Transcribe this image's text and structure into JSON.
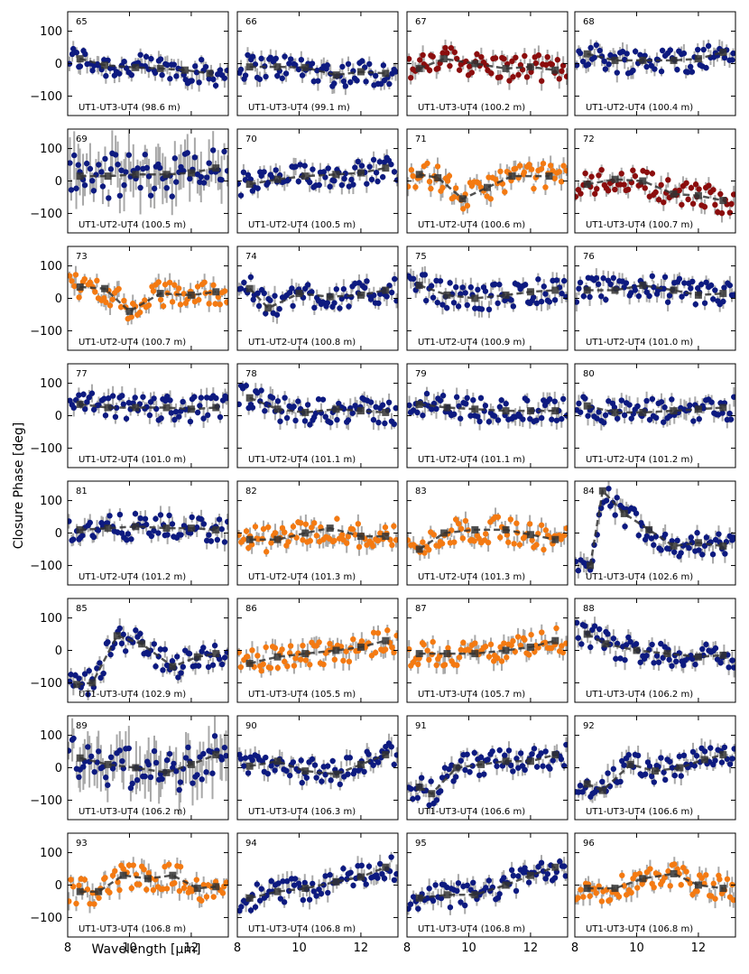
{
  "figure": {
    "ylabel": "Closure Phase [deg]",
    "xlabel": "Wavelength [μm]"
  },
  "colors": {
    "navy": "#0d1a80",
    "orange": "#f47a12",
    "darkred": "#8b0d0d",
    "model": "#333333",
    "errorbar": "#a8a8a8"
  },
  "chart_data": {
    "type": "scatter",
    "layout": "grid 8 rows x 4 columns of small panels, shared x and y axes",
    "xlim": [
      8,
      13.2
    ],
    "ylim": [
      -160,
      160
    ],
    "xticks": [
      8,
      10,
      12
    ],
    "yticks": [
      -100,
      0,
      100
    ],
    "series_description": "each panel: measured closure phase points with grey error bars, plus dark-grey square markers joined by a dashed line (model)",
    "panels": [
      {
        "id": "65",
        "label": "UT1-UT3-UT4 (98.6 m)",
        "color": "navy",
        "model": [
          [
            8.4,
            15
          ],
          [
            9.2,
            -5
          ],
          [
            10.2,
            -12
          ],
          [
            11.0,
            -15
          ],
          [
            11.8,
            -20
          ],
          [
            12.6,
            -30
          ]
        ]
      },
      {
        "id": "66",
        "label": "UT1-UT3-UT4 (99.1 m)",
        "color": "navy",
        "model": [
          [
            8.4,
            -10
          ],
          [
            9.3,
            -10
          ],
          [
            10.2,
            -12
          ],
          [
            11.2,
            -35
          ],
          [
            12.0,
            -25
          ],
          [
            12.8,
            -30
          ]
        ]
      },
      {
        "id": "67",
        "label": "UT1-UT3-UT4 (100.2 m)",
        "color": "darkred",
        "model": [
          [
            8.4,
            -15
          ],
          [
            9.2,
            15
          ],
          [
            10.2,
            0
          ],
          [
            11.2,
            -15
          ],
          [
            12.0,
            -10
          ],
          [
            12.8,
            -20
          ]
        ]
      },
      {
        "id": "68",
        "label": "UT1-UT2-UT4 (100.4 m)",
        "color": "navy",
        "model": [
          [
            8.4,
            30
          ],
          [
            9.3,
            10
          ],
          [
            10.2,
            10
          ],
          [
            11.2,
            10
          ],
          [
            12.0,
            15
          ],
          [
            12.8,
            35
          ]
        ]
      },
      {
        "id": "69",
        "label": "UT1-UT2-UT4 (100.5 m)",
        "color": "navy",
        "model": [
          [
            8.4,
            15
          ],
          [
            9.3,
            15
          ],
          [
            10.2,
            20
          ],
          [
            11.2,
            20
          ],
          [
            12.0,
            25
          ],
          [
            12.8,
            40
          ]
        ]
      },
      {
        "id": "70",
        "label": "UT1-UT2-UT4 (100.5 m)",
        "color": "navy",
        "model": [
          [
            8.4,
            -10
          ],
          [
            9.3,
            5
          ],
          [
            10.2,
            15
          ],
          [
            11.2,
            20
          ],
          [
            12.0,
            25
          ],
          [
            12.8,
            40
          ]
        ]
      },
      {
        "id": "71",
        "label": "UT1-UT2-UT4 (100.6 m)",
        "color": "orange",
        "model": [
          [
            8.4,
            20
          ],
          [
            9.0,
            10
          ],
          [
            9.8,
            -55
          ],
          [
            10.6,
            -20
          ],
          [
            11.4,
            15
          ],
          [
            12.6,
            15
          ]
        ]
      },
      {
        "id": "72",
        "label": "UT1-UT3-UT4 (100.7 m)",
        "color": "darkred",
        "model": [
          [
            8.4,
            -10
          ],
          [
            9.3,
            5
          ],
          [
            10.2,
            0
          ],
          [
            11.2,
            -40
          ],
          [
            12.0,
            -45
          ],
          [
            12.8,
            -60
          ]
        ]
      },
      {
        "id": "73",
        "label": "UT1-UT2-UT4 (100.7 m)",
        "color": "orange",
        "model": [
          [
            8.4,
            35
          ],
          [
            9.2,
            30
          ],
          [
            10.0,
            -40
          ],
          [
            11.0,
            15
          ],
          [
            12.0,
            10
          ],
          [
            12.8,
            20
          ]
        ]
      },
      {
        "id": "74",
        "label": "UT1-UT2-UT4 (100.8 m)",
        "color": "navy",
        "model": [
          [
            8.4,
            30
          ],
          [
            9.0,
            -30
          ],
          [
            10.0,
            15
          ],
          [
            11.0,
            5
          ],
          [
            12.0,
            10
          ],
          [
            12.8,
            25
          ]
        ]
      },
      {
        "id": "75",
        "label": "UT1-UT2-UT4 (100.9 m)",
        "color": "navy",
        "model": [
          [
            8.4,
            40
          ],
          [
            9.3,
            10
          ],
          [
            10.2,
            0
          ],
          [
            11.2,
            10
          ],
          [
            12.0,
            20
          ],
          [
            12.8,
            25
          ]
        ]
      },
      {
        "id": "76",
        "label": "UT1-UT2-UT4 (101.0 m)",
        "color": "navy",
        "model": [
          [
            8.4,
            25
          ],
          [
            9.3,
            25
          ],
          [
            10.2,
            40
          ],
          [
            11.2,
            25
          ],
          [
            12.0,
            10
          ],
          [
            12.8,
            15
          ]
        ]
      },
      {
        "id": "77",
        "label": "UT1-UT2-UT4 (101.0 m)",
        "color": "navy",
        "model": [
          [
            8.4,
            35
          ],
          [
            9.3,
            25
          ],
          [
            10.2,
            25
          ],
          [
            11.2,
            25
          ],
          [
            12.0,
            20
          ],
          [
            12.8,
            25
          ]
        ]
      },
      {
        "id": "78",
        "label": "UT1-UT2-UT4 (101.1 m)",
        "color": "navy",
        "model": [
          [
            8.4,
            55
          ],
          [
            9.3,
            20
          ],
          [
            10.2,
            10
          ],
          [
            11.2,
            20
          ],
          [
            12.0,
            15
          ],
          [
            12.8,
            10
          ]
        ]
      },
      {
        "id": "79",
        "label": "UT1-UT2-UT4 (101.1 m)",
        "color": "navy",
        "model": [
          [
            8.4,
            35
          ],
          [
            9.3,
            25
          ],
          [
            10.2,
            20
          ],
          [
            11.2,
            15
          ],
          [
            12.0,
            15
          ],
          [
            12.8,
            15
          ]
        ]
      },
      {
        "id": "80",
        "label": "UT1-UT2-UT4 (101.2 m)",
        "color": "navy",
        "model": [
          [
            8.4,
            30
          ],
          [
            9.3,
            10
          ],
          [
            10.2,
            10
          ],
          [
            11.2,
            15
          ],
          [
            12.0,
            20
          ],
          [
            12.8,
            25
          ]
        ]
      },
      {
        "id": "81",
        "label": "UT1-UT2-UT4 (101.2 m)",
        "color": "navy",
        "model": [
          [
            8.4,
            10
          ],
          [
            9.3,
            15
          ],
          [
            10.2,
            20
          ],
          [
            11.2,
            15
          ],
          [
            12.0,
            15
          ],
          [
            12.8,
            10
          ]
        ]
      },
      {
        "id": "82",
        "label": "UT1-UT2-UT4 (101.3 m)",
        "color": "orange",
        "model": [
          [
            8.4,
            -20
          ],
          [
            9.3,
            -20
          ],
          [
            10.2,
            0
          ],
          [
            11.0,
            15
          ],
          [
            12.0,
            -10
          ],
          [
            12.8,
            -10
          ]
        ]
      },
      {
        "id": "83",
        "label": "UT1-UT2-UT4 (101.3 m)",
        "color": "orange",
        "model": [
          [
            8.4,
            -50
          ],
          [
            9.2,
            0
          ],
          [
            10.2,
            10
          ],
          [
            11.2,
            10
          ],
          [
            12.0,
            -5
          ],
          [
            12.8,
            -20
          ]
        ]
      },
      {
        "id": "84",
        "label": "UT1-UT3-UT4 (102.6 m)",
        "color": "navy",
        "model": [
          [
            8.5,
            -100
          ],
          [
            8.9,
            130
          ],
          [
            9.6,
            60
          ],
          [
            10.4,
            10
          ],
          [
            11.2,
            -40
          ],
          [
            12.0,
            -30
          ],
          [
            12.8,
            -40
          ]
        ]
      },
      {
        "id": "85",
        "label": "UT1-UT3-UT4 (102.9 m)",
        "color": "navy",
        "model": [
          [
            8.3,
            -105
          ],
          [
            8.8,
            -100
          ],
          [
            9.6,
            45
          ],
          [
            10.4,
            20
          ],
          [
            11.4,
            -50
          ],
          [
            12.2,
            -20
          ],
          [
            12.8,
            -10
          ]
        ]
      },
      {
        "id": "86",
        "label": "UT1-UT3-UT4 (105.5 m)",
        "color": "orange",
        "model": [
          [
            8.4,
            -40
          ],
          [
            9.3,
            -20
          ],
          [
            10.2,
            -10
          ],
          [
            11.2,
            0
          ],
          [
            12.0,
            10
          ],
          [
            12.8,
            30
          ]
        ]
      },
      {
        "id": "87",
        "label": "UT1-UT3-UT4 (105.7 m)",
        "color": "orange",
        "model": [
          [
            8.4,
            -10
          ],
          [
            9.3,
            -10
          ],
          [
            10.2,
            -10
          ],
          [
            11.2,
            0
          ],
          [
            12.0,
            10
          ],
          [
            12.8,
            30
          ]
        ]
      },
      {
        "id": "88",
        "label": "UT1-UT3-UT4 (106.2 m)",
        "color": "navy",
        "model": [
          [
            8.4,
            50
          ],
          [
            9.0,
            20
          ],
          [
            10.0,
            0
          ],
          [
            11.0,
            -10
          ],
          [
            12.0,
            -20
          ],
          [
            12.8,
            -15
          ]
        ]
      },
      {
        "id": "89",
        "label": "UT1-UT3-UT4 (106.2 m)",
        "color": "navy",
        "model": [
          [
            8.4,
            30
          ],
          [
            9.3,
            10
          ],
          [
            10.2,
            0
          ],
          [
            11.2,
            -15
          ],
          [
            12.0,
            10
          ],
          [
            12.8,
            40
          ]
        ]
      },
      {
        "id": "90",
        "label": "UT1-UT3-UT4 (106.3 m)",
        "color": "navy",
        "model": [
          [
            8.4,
            5
          ],
          [
            9.3,
            20
          ],
          [
            10.2,
            -10
          ],
          [
            11.2,
            -20
          ],
          [
            12.0,
            10
          ],
          [
            12.8,
            40
          ]
        ]
      },
      {
        "id": "91",
        "label": "UT1-UT3-UT4 (106.6 m)",
        "color": "navy",
        "model": [
          [
            8.4,
            -60
          ],
          [
            8.8,
            -80
          ],
          [
            9.6,
            0
          ],
          [
            10.4,
            10
          ],
          [
            11.2,
            20
          ],
          [
            12.0,
            20
          ],
          [
            12.8,
            40
          ]
        ]
      },
      {
        "id": "92",
        "label": "UT1-UT3-UT4 (106.6 m)",
        "color": "navy",
        "model": [
          [
            8.4,
            -50
          ],
          [
            8.9,
            -70
          ],
          [
            9.8,
            10
          ],
          [
            10.6,
            -10
          ],
          [
            11.4,
            0
          ],
          [
            12.2,
            25
          ],
          [
            12.8,
            40
          ]
        ]
      },
      {
        "id": "93",
        "label": "UT1-UT3-UT4 (106.8 m)",
        "color": "orange",
        "model": [
          [
            8.4,
            -20
          ],
          [
            9.0,
            -20
          ],
          [
            9.8,
            30
          ],
          [
            10.6,
            20
          ],
          [
            11.4,
            30
          ],
          [
            12.2,
            -10
          ],
          [
            12.8,
            -5
          ]
        ]
      },
      {
        "id": "94",
        "label": "UT1-UT3-UT4 (106.8 m)",
        "color": "navy",
        "model": [
          [
            8.4,
            -40
          ],
          [
            9.3,
            -20
          ],
          [
            10.2,
            -10
          ],
          [
            11.2,
            10
          ],
          [
            12.0,
            25
          ],
          [
            12.8,
            55
          ]
        ]
      },
      {
        "id": "95",
        "label": "UT1-UT3-UT4 (106.8 m)",
        "color": "navy",
        "model": [
          [
            8.4,
            -40
          ],
          [
            9.3,
            -30
          ],
          [
            10.2,
            -30
          ],
          [
            11.2,
            0
          ],
          [
            12.0,
            30
          ],
          [
            12.8,
            55
          ]
        ]
      },
      {
        "id": "96",
        "label": "UT1-UT3-UT4 (106.8 m)",
        "color": "orange",
        "model": [
          [
            8.4,
            -10
          ],
          [
            9.3,
            -10
          ],
          [
            10.2,
            20
          ],
          [
            11.2,
            35
          ],
          [
            12.0,
            0
          ],
          [
            12.8,
            -10
          ]
        ]
      }
    ]
  }
}
